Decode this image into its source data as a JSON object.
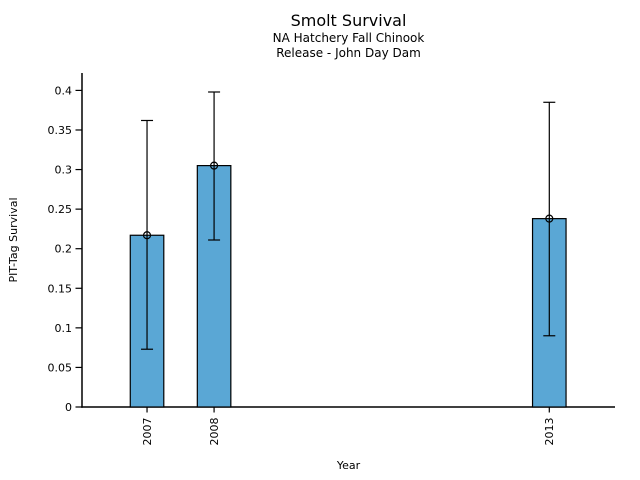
{
  "figure": {
    "title": "Smolt Survival",
    "subtitle_line1": "NA Hatchery Fall Chinook",
    "subtitle_line2": "Release - John Day Dam"
  },
  "chart_data": {
    "type": "bar",
    "title": "Smolt Survival",
    "subtitle1": "NA Hatchery Fall Chinook",
    "subtitle2": "Release - John Day Dam",
    "xlabel": "Year",
    "ylabel": "PIT-Tag Survival",
    "categories": [
      "2007",
      "2008",
      "2013"
    ],
    "x": [
      2007,
      2008,
      2013
    ],
    "values": [
      0.217,
      0.305,
      0.238
    ],
    "error_low": [
      0.073,
      0.211,
      0.09
    ],
    "error_high": [
      0.362,
      0.398,
      0.385
    ],
    "error_note": "absolute data values of lower/upper error-bar caps",
    "marker": "open-circle-at-bar-top",
    "bar_width_years": 0.5,
    "xlim": [
      2006.03,
      2013.98
    ],
    "ylim": [
      0,
      0.422
    ],
    "ytick_values": [
      0,
      0.05,
      0.1,
      0.15,
      0.2,
      0.25,
      0.3,
      0.35,
      0.4
    ],
    "ytick_labels": [
      "0",
      "0.05",
      "0.1",
      "0.15",
      "0.2",
      "0.25",
      "0.3",
      "0.35",
      "0.4"
    ],
    "grid": false,
    "legend": "none",
    "bar_color": "#5AA7D5",
    "edge_color": "#000000",
    "axis_color": "#000000",
    "text_color": "#000000"
  }
}
